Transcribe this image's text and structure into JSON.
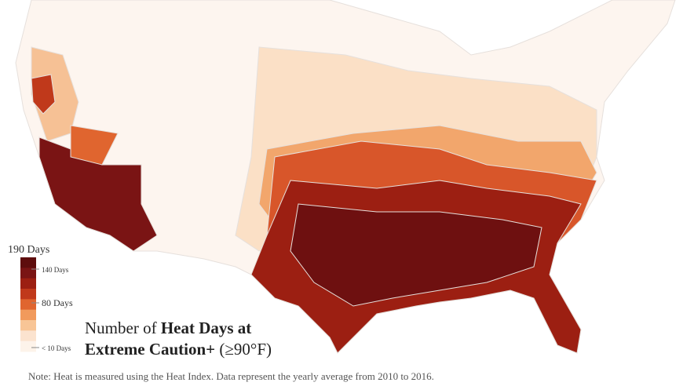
{
  "legend": {
    "top_label": "190 Days",
    "colors": [
      "#5e0d0d",
      "#7a1414",
      "#9c1f12",
      "#c0391b",
      "#e0652f",
      "#f19a5c",
      "#f8c596",
      "#fbe3cf",
      "#fdf3ea"
    ],
    "labels": [
      "140 Days",
      "80 Days",
      "< 10 Days"
    ]
  },
  "title": {
    "plain_1": "Number of",
    "bold_1": "Heat Days at",
    "bold_2": "Extreme Caution+",
    "plain_2": "(≥90°F)"
  },
  "note": "Note: Heat is measured using the Heat Index. Data represent the yearly average from 2010 to 2016."
}
